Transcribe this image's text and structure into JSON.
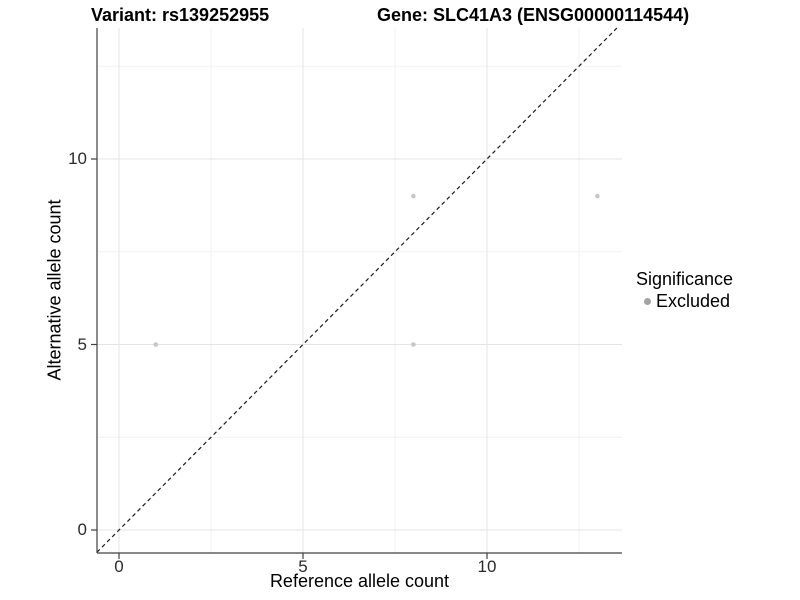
{
  "page": {
    "background": "#ffffff"
  },
  "titles": {
    "variant": "Variant: rs139252955",
    "gene": "Gene: SLC41A3 (ENSG00000114544)"
  },
  "legend": {
    "title": "Significance",
    "items": [
      {
        "label": "Excluded",
        "color": "#a3a3a3"
      }
    ]
  },
  "chart_data": {
    "type": "scatter",
    "xlabel": "Reference allele count",
    "ylabel": "Alternative allele count",
    "x_ticks": [
      0,
      5,
      10
    ],
    "y_ticks": [
      0,
      5,
      10
    ],
    "x_minor_ticks": [
      2.5,
      7.5,
      12.5
    ],
    "y_minor_ticks": [
      2.5,
      7.5,
      12.5
    ],
    "xlim": [
      -0.6,
      13.67
    ],
    "ylim": [
      -0.62,
      13.53
    ],
    "grid": true,
    "legend_position": "right",
    "series": [
      {
        "name": "Excluded",
        "color": "#c7c7c7",
        "points": [
          [
            1,
            5
          ],
          [
            8,
            5
          ],
          [
            8,
            9
          ],
          [
            13,
            9
          ]
        ]
      }
    ],
    "reference_line": {
      "type": "identity",
      "style": "dashed",
      "color": "#1a1a1a"
    },
    "colors": {
      "grid_major": "#e4e4e4",
      "grid_minor": "#f2f2f2",
      "axis_line": "#404040",
      "tick_mark": "#404040"
    }
  }
}
